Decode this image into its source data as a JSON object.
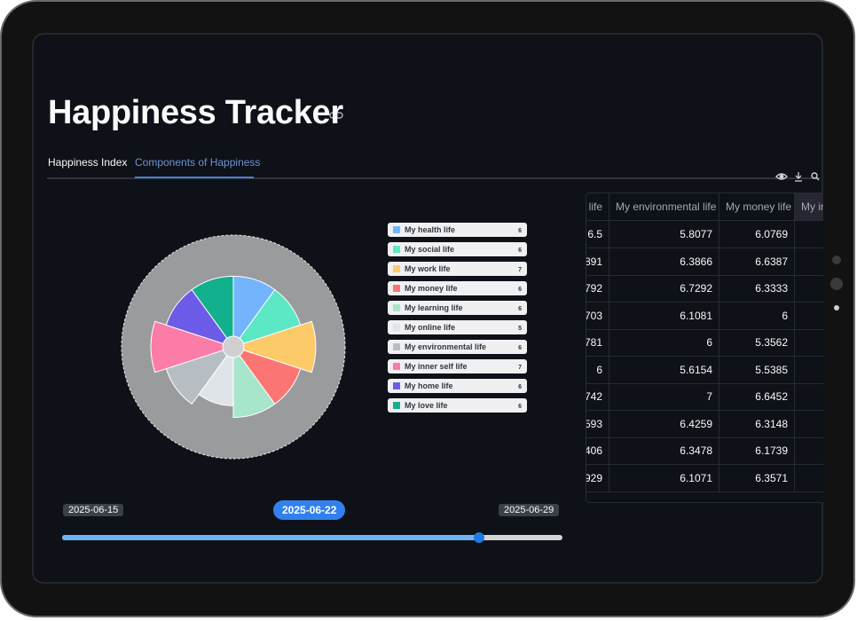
{
  "header": {
    "title": "Happiness Tracker"
  },
  "tabs": {
    "items": [
      "Happiness Index",
      "Components of Happiness"
    ],
    "active": 1
  },
  "chart_data": {
    "type": "polar",
    "categories": [
      "My health life",
      "My social life",
      "My work life",
      "My money life",
      "My learning life",
      "My online life",
      "My environmental life",
      "My inner self life",
      "My home life",
      "My love life"
    ],
    "values": [
      6,
      6,
      7,
      6,
      6,
      5,
      6,
      7,
      6,
      6
    ],
    "colors": [
      "#74b4fc",
      "#5ce8c4",
      "#fdca6a",
      "#fc7575",
      "#a8e6cc",
      "#dfe4e8",
      "#b6bec4",
      "#fc7ca8",
      "#6b5be6",
      "#13b08e"
    ],
    "rlim": [
      0,
      9.5
    ]
  },
  "table": {
    "columns": [
      "life",
      "My environmental life",
      "My money life",
      "My in"
    ],
    "rows": [
      [
        6.5,
        5.8077,
        6.0769
      ],
      [
        891,
        6.3866,
        6.6387
      ],
      [
        792,
        6.7292,
        6.3333
      ],
      [
        703,
        6.1081,
        6
      ],
      [
        781,
        6,
        5.3562
      ],
      [
        6,
        5.6154,
        5.5385
      ],
      [
        742,
        7,
        6.6452
      ],
      [
        593,
        6.4259,
        6.3148
      ],
      [
        406,
        6.3478,
        6.1739
      ],
      [
        929,
        6.1071,
        6.3571
      ]
    ]
  },
  "slider": {
    "min_label": "2025-06-15",
    "max_label": "2025-06-29",
    "value_label": "2025-06-22"
  }
}
